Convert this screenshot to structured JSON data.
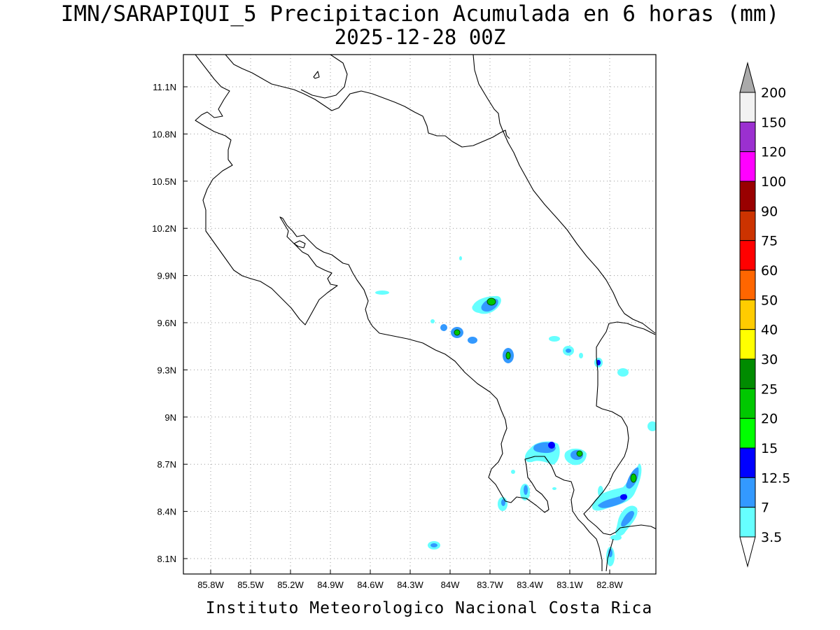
{
  "title": {
    "line1": "IMN/SARAPIQUI_5 Precipitacion Acumulada en 6 horas (mm)",
    "line2": "2025-12-28 00Z"
  },
  "credit": "Instituto Meteorologico Nacional Costa Rica",
  "map": {
    "lon_labels": [
      "85.8W",
      "85.5W",
      "85.2W",
      "84.9W",
      "84.6W",
      "84.3W",
      "84W",
      "83.7W",
      "83.4W",
      "83.1W",
      "82.8W"
    ],
    "lat_labels": [
      "11.1N",
      "10.8N",
      "10.5N",
      "10.2N",
      "9.9N",
      "9.6N",
      "9.3N",
      "9N",
      "8.7N",
      "8.4N",
      "8.1N"
    ],
    "grid": "dotted"
  },
  "colorbar": {
    "labels": [
      "200",
      "150",
      "120",
      "100",
      "90",
      "75",
      "60",
      "50",
      "40",
      "30",
      "25",
      "20",
      "15",
      "12.5",
      "7",
      "3.5"
    ],
    "colors": [
      "#f2f2f2",
      "#9b30d0",
      "#ff00ff",
      "#990000",
      "#cc3300",
      "#ff0000",
      "#ff6600",
      "#ffcc00",
      "#ffff00",
      "#008b00",
      "#00c800",
      "#00ff00",
      "#0000ff",
      "#3399ff",
      "#66ffff"
    ],
    "over_color": "#aaaaaa",
    "under_color": "#ffffff"
  },
  "precip_units": "mm"
}
